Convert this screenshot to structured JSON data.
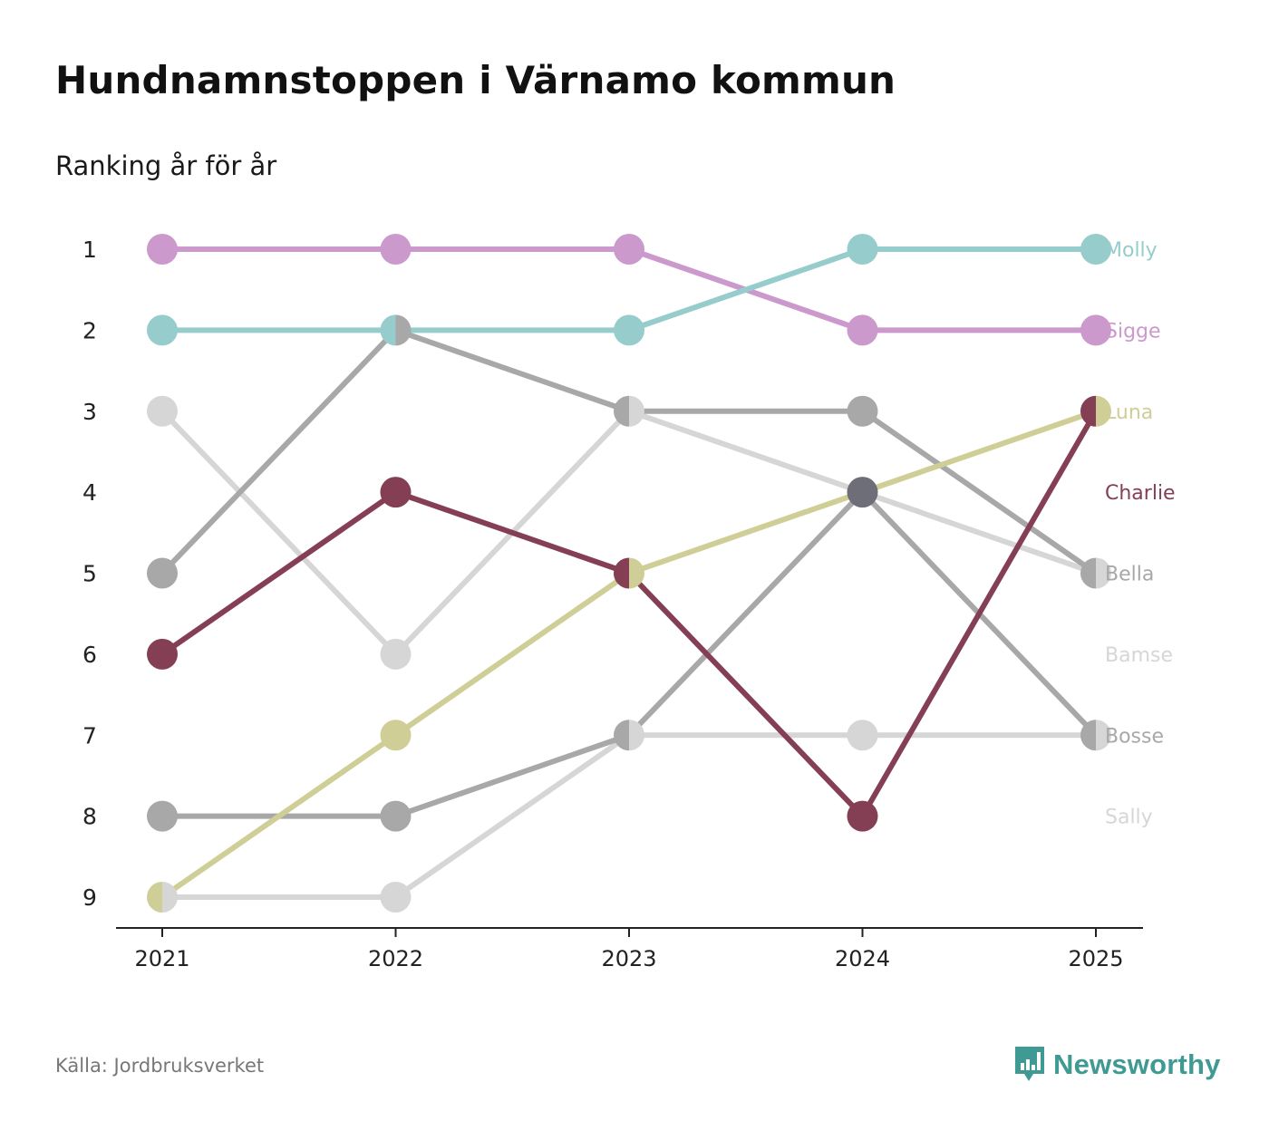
{
  "title": "Hundnamnstoppen i Värnamo kommun",
  "subtitle": "Ranking år för år",
  "source": "Källa: Jordbruksverket",
  "brand": "Newsworthy",
  "chart_data": {
    "type": "line",
    "subtype": "bump",
    "x": [
      "2021",
      "2022",
      "2023",
      "2024",
      "2025"
    ],
    "y_ticks": [
      "1",
      "2",
      "3",
      "4",
      "5",
      "6",
      "7",
      "8",
      "9"
    ],
    "ylim": [
      1,
      9
    ],
    "y_reversed": true,
    "series": [
      {
        "name": "Sally",
        "color": "#d6d6d6",
        "values": [
          9,
          9,
          7,
          7,
          7
        ]
      },
      {
        "name": "Bamse",
        "color": "#d6d6d6",
        "values": [
          3,
          6,
          3,
          4,
          5
        ]
      },
      {
        "name": "Bosse",
        "color": "#a8a8a8",
        "values": [
          8,
          8,
          7,
          4,
          7
        ]
      },
      {
        "name": "Bella",
        "color": "#a8a8a8",
        "values": [
          5,
          2,
          3,
          3,
          5
        ]
      },
      {
        "name": "Luna",
        "color": "#cfce97",
        "values": [
          9,
          7,
          5,
          4,
          3
        ]
      },
      {
        "name": "Charlie",
        "color": "#843f55",
        "values": [
          6,
          4,
          5,
          8,
          3
        ]
      },
      {
        "name": "Sigge",
        "color": "#cc99cc",
        "values": [
          1,
          1,
          1,
          2,
          2
        ]
      },
      {
        "name": "Molly",
        "color": "#96cdcc",
        "values": [
          2,
          2,
          2,
          1,
          1
        ]
      }
    ],
    "label_order": [
      "Molly",
      "Sigge",
      "Luna",
      "Charlie",
      "Bella",
      "Bamse",
      "Bosse",
      "Sally"
    ]
  }
}
